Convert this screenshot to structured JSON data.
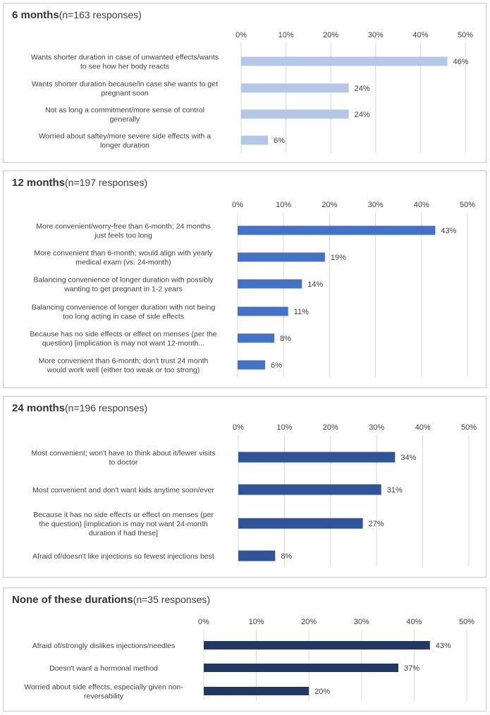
{
  "chart_data": [
    {
      "type": "bar",
      "orientation": "horizontal",
      "title": "6 months",
      "subtitle": "(n=163 responses)",
      "xlim": [
        0,
        50
      ],
      "ticks": [
        "0%",
        "10%",
        "20%",
        "30%",
        "40%",
        "50%"
      ],
      "color": "#b4c7e7",
      "categories": [
        [
          "Wants shorter duration in case of unwanted effects/wants",
          "to see how her body reacts"
        ],
        [
          "Wants shorter duration because/in case she wants to get",
          "pregnant soon"
        ],
        [
          "Not as long a commitment/more sense of control",
          "generally"
        ],
        [
          "Worried about saftey/more severe side effects with a",
          "longer duration"
        ]
      ],
      "values": [
        46,
        24,
        24,
        6
      ],
      "value_labels": [
        "46%",
        "24%",
        "24%",
        "6%"
      ]
    },
    {
      "type": "bar",
      "orientation": "horizontal",
      "title": "12 months",
      "subtitle": "(n=197 responses)",
      "xlim": [
        0,
        50
      ],
      "ticks": [
        "0%",
        "10%",
        "20%",
        "30%",
        "40%",
        "50%"
      ],
      "color": "#4472c4",
      "categories": [
        [
          "More convenient/worry-free than 6-month;  24 months",
          "just feels too long"
        ],
        [
          "More convenient than 6-month; would align with yearly",
          "medical exam (vs. 24-month)"
        ],
        [
          "Balancing convenience of longer duration with possibly",
          "wanting to get pregnant in 1-2 years"
        ],
        [
          "Balancing convenience of longer duration with not being",
          "too long acting in case of side effects"
        ],
        [
          "Because has no side effects or effect on menses (per the",
          "question) [implication is may not want 12-month..."
        ],
        [
          "More convenient than 6-month; don't trust 24 month",
          "would work well (either too weak or too strong)"
        ]
      ],
      "values": [
        43,
        19,
        14,
        11,
        8,
        6
      ],
      "value_labels": [
        "43%",
        "19%",
        "14%",
        "11%",
        "8%",
        "6%"
      ]
    },
    {
      "type": "bar",
      "orientation": "horizontal",
      "title": "24 months",
      "subtitle": "(n=196 responses)",
      "xlim": [
        0,
        50
      ],
      "ticks": [
        "0%",
        "10%",
        "20%",
        "30%",
        "40%",
        "50%"
      ],
      "color": "#2f5597",
      "categories": [
        [
          "Most convenient; won't have to think about it/fewer visits",
          "to doctor"
        ],
        [
          "Most convenient and don't want kids anytime soon/ever"
        ],
        [
          "Because it has no side effects or effect on menses (per",
          "the question) [implication is may not want 24-month",
          "duration if had these]"
        ],
        [
          "Afraid of/doesn't like injections so fewest injections best"
        ]
      ],
      "values": [
        34,
        31,
        27,
        8
      ],
      "value_labels": [
        "34%",
        "31%",
        "27%",
        "8%"
      ]
    },
    {
      "type": "bar",
      "orientation": "horizontal",
      "title": "None of these durations",
      "subtitle": "(n=35 responses)",
      "xlim": [
        0,
        50
      ],
      "ticks": [
        "0%",
        "10%",
        "20%",
        "30%",
        "40%",
        "50%"
      ],
      "color": "#203864",
      "categories": [
        [
          "Afraid of/strongly dislikes injections/needles"
        ],
        [
          "Doesn't want a hormonal method"
        ],
        [
          "Worried about side effects, especially given non-",
          "reversability"
        ]
      ],
      "values": [
        43,
        37,
        20
      ],
      "value_labels": [
        "43%",
        "37%",
        "20%"
      ]
    }
  ]
}
